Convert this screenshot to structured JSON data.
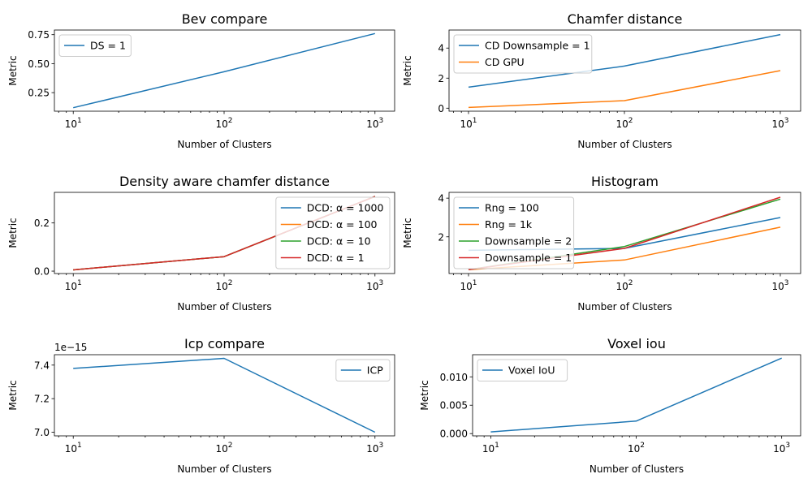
{
  "chart_data": [
    {
      "type": "line",
      "title": "Bev compare",
      "xlabel": "Number of Clusters",
      "ylabel": "Metric",
      "xscale": "log",
      "x": [
        10,
        100,
        1000
      ],
      "xlim": [
        7.5,
        1350
      ],
      "ylim": [
        0.09,
        0.79
      ],
      "yticks": [
        0.25,
        0.5,
        0.75
      ],
      "ytick_labels": [
        "0.25",
        "0.50",
        "0.75"
      ],
      "offset_label": "",
      "legend_loc": "upper-left",
      "series": [
        {
          "name": "DS = 1",
          "color": "#1f77b4",
          "values": [
            0.12,
            0.43,
            0.76
          ]
        }
      ]
    },
    {
      "type": "line",
      "title": "Chamfer distance",
      "xlabel": "Number of Clusters",
      "ylabel": "Metric",
      "xscale": "log",
      "x": [
        10,
        100,
        1000
      ],
      "xlim": [
        7.5,
        1350
      ],
      "ylim": [
        -0.2,
        5.2
      ],
      "yticks": [
        0,
        2,
        4
      ],
      "ytick_labels": [
        "0",
        "2",
        "4"
      ],
      "offset_label": "",
      "legend_loc": "upper-left",
      "series": [
        {
          "name": "CD Downsample = 1",
          "color": "#1f77b4",
          "values": [
            1.4,
            2.8,
            4.9
          ]
        },
        {
          "name": "CD GPU",
          "color": "#ff7f0e",
          "values": [
            0.05,
            0.5,
            2.5
          ]
        }
      ]
    },
    {
      "type": "line",
      "title": "Density aware chamfer distance",
      "xlabel": "Number of Clusters",
      "ylabel": "Metric",
      "xscale": "log",
      "x": [
        10,
        100,
        1000
      ],
      "xlim": [
        7.5,
        1350
      ],
      "ylim": [
        -0.01,
        0.327
      ],
      "yticks": [
        0.0,
        0.2
      ],
      "ytick_labels": [
        "0.0",
        "0.2"
      ],
      "offset_label": "",
      "legend_loc": "upper-right",
      "series": [
        {
          "name": "DCD: α = 1000",
          "color": "#1f77b4",
          "values": [
            0.005,
            0.06,
            0.31
          ]
        },
        {
          "name": "DCD: α = 100",
          "color": "#ff7f0e",
          "values": [
            0.005,
            0.06,
            0.31
          ]
        },
        {
          "name": "DCD: α = 10",
          "color": "#2ca02c",
          "values": [
            0.005,
            0.06,
            0.31
          ]
        },
        {
          "name": "DCD: α = 1",
          "color": "#d62728",
          "values": [
            0.005,
            0.06,
            0.31
          ]
        }
      ]
    },
    {
      "type": "line",
      "title": "Histogram",
      "xlabel": "Number of Clusters",
      "ylabel": "Metric",
      "xscale": "log",
      "x": [
        10,
        100,
        1000
      ],
      "xlim": [
        7.5,
        1350
      ],
      "ylim": [
        0.1,
        4.3
      ],
      "yticks": [
        2,
        4
      ],
      "ytick_labels": [
        "2",
        "4"
      ],
      "offset_label": "",
      "legend_loc": "upper-left",
      "series": [
        {
          "name": "Rng = 100",
          "color": "#1f77b4",
          "values": [
            1.3,
            1.4,
            3.0
          ]
        },
        {
          "name": "Rng = 1k",
          "color": "#ff7f0e",
          "values": [
            0.3,
            0.8,
            2.5
          ]
        },
        {
          "name": "Downsample = 2",
          "color": "#2ca02c",
          "values": [
            0.3,
            1.5,
            3.95
          ]
        },
        {
          "name": "Downsample = 1",
          "color": "#d62728",
          "values": [
            0.3,
            1.4,
            4.05
          ]
        }
      ]
    },
    {
      "type": "line",
      "title": "Icp compare",
      "xlabel": "Number of Clusters",
      "ylabel": "Metric",
      "xscale": "log",
      "x": [
        10,
        100,
        1000
      ],
      "xlim": [
        7.5,
        1350
      ],
      "ylim": [
        6.978,
        7.462
      ],
      "yticks": [
        7.0,
        7.2,
        7.4
      ],
      "ytick_labels": [
        "7.0",
        "7.2",
        "7.4"
      ],
      "offset_label": "1e−15",
      "legend_loc": "upper-right",
      "series": [
        {
          "name": "ICP",
          "color": "#1f77b4",
          "values": [
            7.38,
            7.44,
            7.0
          ]
        }
      ]
    },
    {
      "type": "line",
      "title": "Voxel iou",
      "xlabel": "Number of Clusters",
      "ylabel": "Metric",
      "xscale": "log",
      "x": [
        10,
        100,
        1000
      ],
      "xlim": [
        7.5,
        1350
      ],
      "ylim": [
        -0.0004,
        0.0139
      ],
      "yticks": [
        0.0,
        0.005,
        0.01
      ],
      "ytick_labels": [
        "0.000",
        "0.005",
        "0.010"
      ],
      "offset_label": "",
      "legend_loc": "upper-left",
      "series": [
        {
          "name": "Voxel IoU",
          "color": "#1f77b4",
          "values": [
            0.0003,
            0.0022,
            0.0133
          ]
        }
      ]
    }
  ]
}
